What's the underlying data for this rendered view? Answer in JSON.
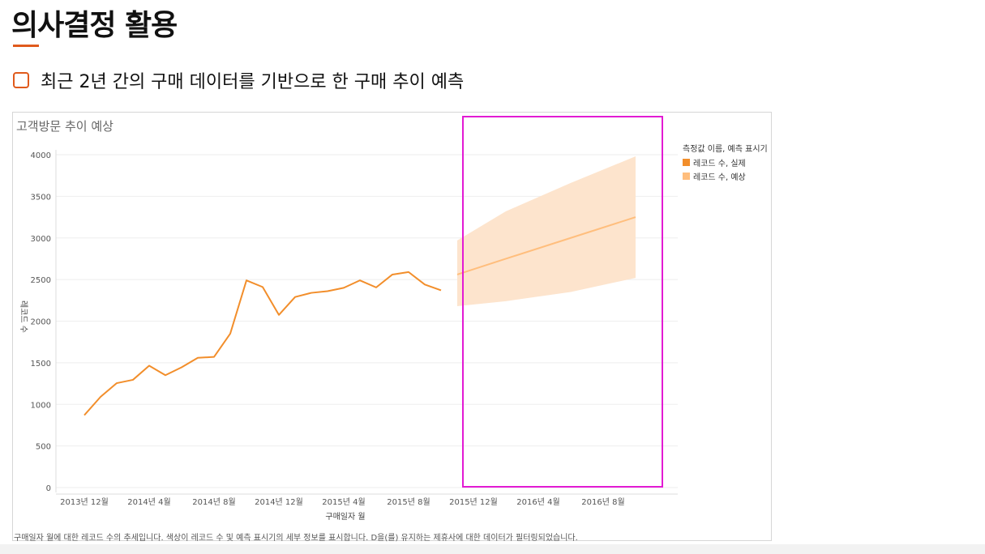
{
  "header": {
    "title": "의사결정 활용",
    "bullet": "최근 2년 간의 구매 데이터를 기반으로 한 구매 추이 예측"
  },
  "colors": {
    "accent": "#e05a1c",
    "actual": "#f28e2b",
    "forecast": "#ffbe7d",
    "forecast_band": "#fde4cd",
    "highlight": "#e21bd3"
  },
  "chart_data": {
    "type": "line",
    "title": "고객방문 추이 예상",
    "xlabel": "구매일자 월",
    "ylabel": "레코드 수",
    "caption": "구매일자 월에 대한 레코드 수의 추세입니다. 색상이 레코드 수 및 예측 표시기의 세부 정보를 표시합니다. D을(를) 유지하는 제휴사에 대한 데이터가 필터링되었습니다.",
    "ylim": [
      0,
      4000
    ],
    "yticks": [
      0,
      500,
      1000,
      1500,
      2000,
      2500,
      3000,
      3500,
      4000
    ],
    "xticks": [
      {
        "label": "2013년 12월",
        "date": "2013-12"
      },
      {
        "label": "2014년 4월",
        "date": "2014-04"
      },
      {
        "label": "2014년 8월",
        "date": "2014-08"
      },
      {
        "label": "2014년 12월",
        "date": "2014-12"
      },
      {
        "label": "2015년 4월",
        "date": "2015-04"
      },
      {
        "label": "2015년 8월",
        "date": "2015-08"
      },
      {
        "label": "2015년 12월",
        "date": "2015-12"
      },
      {
        "label": "2016년 4월",
        "date": "2016-04"
      },
      {
        "label": "2016년 8월",
        "date": "2016-08"
      }
    ],
    "legend": {
      "title": "측정값 이름, 예측 표시기",
      "position": "right",
      "entries": [
        "레코드 수, 실제",
        "레코드 수, 예상"
      ]
    },
    "series": [
      {
        "name": "레코드 수, 실제",
        "points": [
          {
            "x": "2013-12",
            "y": 870
          },
          {
            "x": "2014-01",
            "y": 1090
          },
          {
            "x": "2014-02",
            "y": 1255
          },
          {
            "x": "2014-03",
            "y": 1295
          },
          {
            "x": "2014-04",
            "y": 1465
          },
          {
            "x": "2014-05",
            "y": 1350
          },
          {
            "x": "2014-06",
            "y": 1445
          },
          {
            "x": "2014-07",
            "y": 1560
          },
          {
            "x": "2014-08",
            "y": 1570
          },
          {
            "x": "2014-09",
            "y": 1850
          },
          {
            "x": "2014-10",
            "y": 2490
          },
          {
            "x": "2014-11",
            "y": 2410
          },
          {
            "x": "2014-12",
            "y": 2075
          },
          {
            "x": "2015-01",
            "y": 2290
          },
          {
            "x": "2015-02",
            "y": 2340
          },
          {
            "x": "2015-03",
            "y": 2360
          },
          {
            "x": "2015-04",
            "y": 2400
          },
          {
            "x": "2015-05",
            "y": 2490
          },
          {
            "x": "2015-06",
            "y": 2405
          },
          {
            "x": "2015-07",
            "y": 2560
          },
          {
            "x": "2015-08",
            "y": 2590
          },
          {
            "x": "2015-09",
            "y": 2440
          },
          {
            "x": "2015-10",
            "y": 2370
          }
        ]
      },
      {
        "name": "레코드 수, 예상",
        "points": [
          {
            "x": "2015-11",
            "y": 2560,
            "low": 2180,
            "high": 2970
          },
          {
            "x": "2016-02",
            "y": 2750,
            "low": 2240,
            "high": 3320
          },
          {
            "x": "2016-06",
            "y": 3000,
            "low": 2350,
            "high": 3660
          },
          {
            "x": "2016-10",
            "y": 3250,
            "low": 2520,
            "high": 3980
          }
        ]
      }
    ]
  }
}
